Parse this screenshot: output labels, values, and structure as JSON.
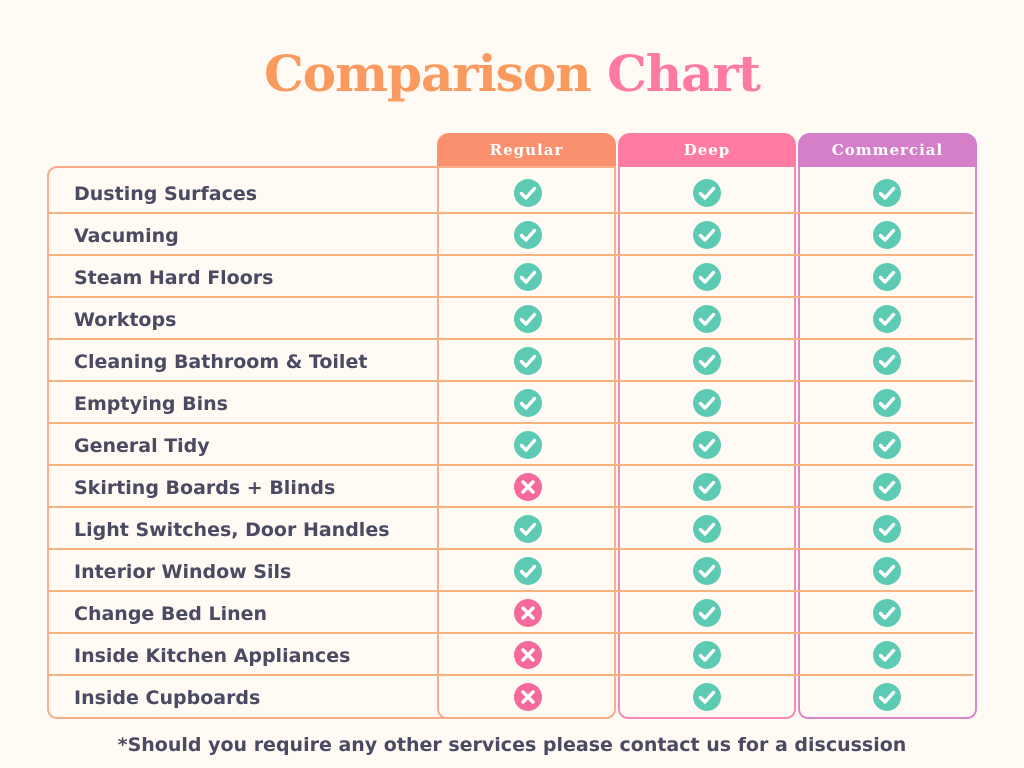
{
  "title": {
    "word1": "Comparison",
    "word2": "Chart"
  },
  "columns": [
    {
      "key": "regular",
      "label": "Regular",
      "color": "#fa906d"
    },
    {
      "key": "deep",
      "label": "Deep",
      "color": "#ff7ba3"
    },
    {
      "key": "commercial",
      "label": "Commercial",
      "color": "#d57ec9"
    }
  ],
  "rows": [
    {
      "label": "Dusting Surfaces",
      "values": [
        "check-icon",
        "check-icon",
        "check-icon"
      ]
    },
    {
      "label": "Vacuming",
      "values": [
        "check-icon",
        "check-icon",
        "check-icon"
      ]
    },
    {
      "label": "Steam Hard Floors",
      "values": [
        "check-icon",
        "check-icon",
        "check-icon"
      ]
    },
    {
      "label": "Worktops",
      "values": [
        "check-icon",
        "check-icon",
        "check-icon"
      ]
    },
    {
      "label": "Cleaning Bathroom & Toilet",
      "values": [
        "check-icon",
        "check-icon",
        "check-icon"
      ]
    },
    {
      "label": "Emptying Bins",
      "values": [
        "check-icon",
        "check-icon",
        "check-icon"
      ]
    },
    {
      "label": "General Tidy",
      "values": [
        "check-icon",
        "check-icon",
        "check-icon"
      ]
    },
    {
      "label": "Skirting Boards + Blinds",
      "values": [
        "cross-icon",
        "check-icon",
        "check-icon"
      ]
    },
    {
      "label": "Light Switches, Door Handles",
      "values": [
        "check-icon",
        "check-icon",
        "check-icon"
      ]
    },
    {
      "label": "Interior Window Sils",
      "values": [
        "check-icon",
        "check-icon",
        "check-icon"
      ]
    },
    {
      "label": "Change Bed Linen",
      "values": [
        "cross-icon",
        "check-icon",
        "check-icon"
      ]
    },
    {
      "label": "Inside Kitchen Appliances",
      "values": [
        "cross-icon",
        "check-icon",
        "check-icon"
      ]
    },
    {
      "label": "Inside Cupboards",
      "values": [
        "cross-icon",
        "check-icon",
        "check-icon"
      ]
    }
  ],
  "icon_colors": {
    "check": "#5dcab3",
    "cross": "#f56a9a"
  },
  "footnote": "*Should you require any other services please contact us for a discussion"
}
